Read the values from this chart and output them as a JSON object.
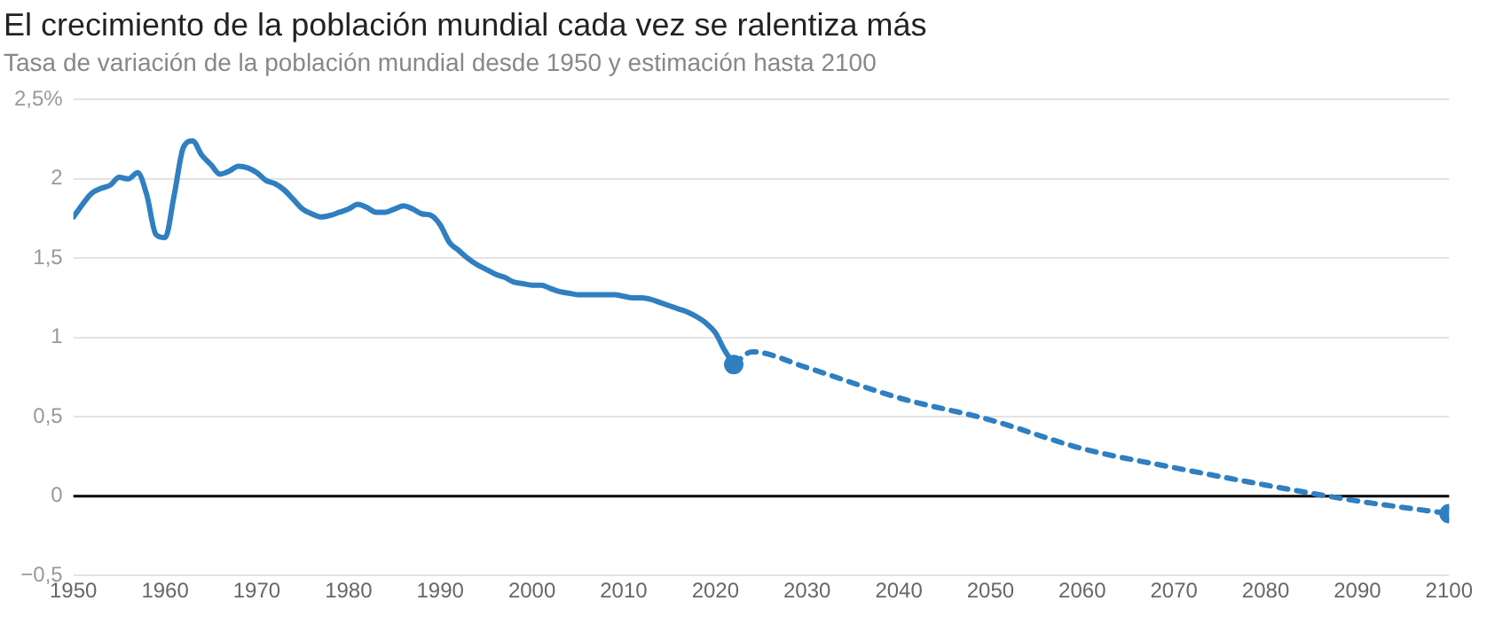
{
  "chart_data": {
    "type": "line",
    "title": "El crecimiento de la población mundial cada vez se ralentiza más",
    "subtitle": "Tasa de variación de la población mundial desde 1950 y estimación hasta 2100",
    "series": [
      {
        "color": "#2f7fc1",
        "line_style": "solid",
        "x": [
          1950,
          1952,
          1953,
          1954,
          1955,
          1956,
          1957,
          1958,
          1959,
          1960,
          1961,
          1962,
          1963,
          1964,
          1965,
          1966,
          1967,
          1968,
          1969,
          1970,
          1971,
          1972,
          1973,
          1974,
          1975,
          1976,
          1977,
          1978,
          1979,
          1980,
          1981,
          1982,
          1983,
          1984,
          1985,
          1986,
          1987,
          1988,
          1989,
          1990,
          1991,
          1992,
          1993,
          1994,
          1995,
          1996,
          1997,
          1998,
          1999,
          2000,
          2001,
          2002,
          2003,
          2004,
          2005,
          2006,
          2007,
          2008,
          2009,
          2010,
          2011,
          2012,
          2013,
          2014,
          2015,
          2016,
          2017,
          2018,
          2019,
          2020,
          2021,
          2022
        ],
        "values": [
          1.76,
          1.91,
          1.94,
          1.96,
          2.01,
          2.0,
          2.04,
          1.9,
          1.65,
          1.63,
          1.9,
          2.2,
          2.24,
          2.15,
          2.09,
          2.03,
          2.05,
          2.08,
          2.07,
          2.04,
          1.99,
          1.97,
          1.93,
          1.87,
          1.81,
          1.78,
          1.76,
          1.77,
          1.79,
          1.81,
          1.84,
          1.82,
          1.79,
          1.79,
          1.81,
          1.83,
          1.81,
          1.78,
          1.77,
          1.71,
          1.6,
          1.55,
          1.5,
          1.46,
          1.43,
          1.4,
          1.38,
          1.35,
          1.34,
          1.33,
          1.33,
          1.31,
          1.29,
          1.28,
          1.27,
          1.27,
          1.27,
          1.27,
          1.27,
          1.26,
          1.25,
          1.25,
          1.24,
          1.22,
          1.2,
          1.18,
          1.16,
          1.13,
          1.09,
          1.03,
          0.92,
          0.83
        ]
      },
      {
        "color": "#2f7fc1",
        "line_style": "dashed",
        "x": [
          2022,
          2024,
          2030,
          2040,
          2050,
          2060,
          2070,
          2080,
          2090,
          2100
        ],
        "values": [
          0.83,
          0.91,
          0.81,
          0.62,
          0.48,
          0.3,
          0.18,
          0.07,
          -0.03,
          -0.11
        ]
      }
    ],
    "xlim": [
      1950,
      2100
    ],
    "xticks": [
      1950,
      1960,
      1970,
      1980,
      1990,
      2000,
      2010,
      2020,
      2030,
      2040,
      2050,
      2060,
      2070,
      2080,
      2090,
      2100
    ],
    "ylim": [
      -0.5,
      2.5
    ],
    "yticks": [
      {
        "value": -0.5,
        "label": "−0,5"
      },
      {
        "value": 0,
        "label": "0"
      },
      {
        "value": 0.5,
        "label": "0,5"
      },
      {
        "value": 1,
        "label": "1"
      },
      {
        "value": 1.5,
        "label": "1,5"
      },
      {
        "value": 2,
        "label": "2"
      },
      {
        "value": 2.5,
        "label": "2,5%"
      }
    ],
    "ref_lines": [
      {
        "axis": "y",
        "value": 0,
        "color": "#000000"
      }
    ],
    "grid": "y",
    "legend": false
  }
}
